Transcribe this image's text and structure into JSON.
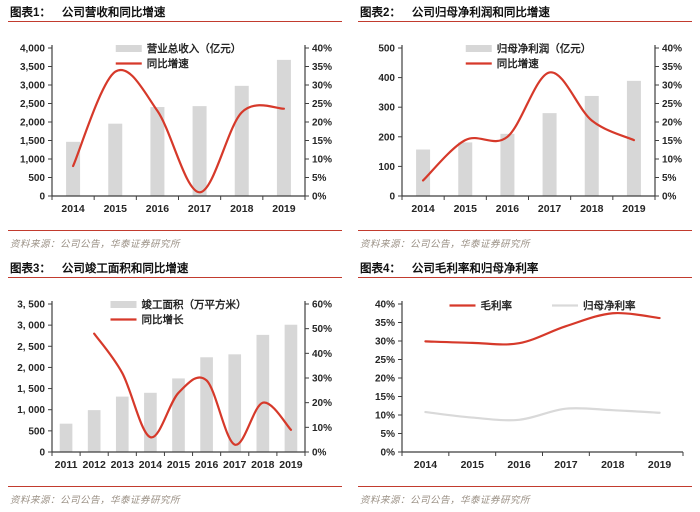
{
  "colors": {
    "accent_red": "#d6392a",
    "rule_red": "#c23b2e",
    "bar_gray": "#d7d7d7",
    "gray_line": "#d9d9d9",
    "axis_gray": "#3f3f3f",
    "tick_text": "#262626",
    "title_text": "#111111",
    "source_text": "#9b9186"
  },
  "chart_data": [
    {
      "id": "figure-1",
      "figure_label": "图表1：",
      "title": "公司营收和同比增速",
      "type": "bar+line",
      "categories": [
        "2014",
        "2015",
        "2016",
        "2017",
        "2018",
        "2019"
      ],
      "series": [
        {
          "name": "营业总收入（亿元）",
          "kind": "bar",
          "axis": "left",
          "color": "gray",
          "values": [
            1464,
            1955,
            2405,
            2429,
            2977,
            3679
          ]
        },
        {
          "name": "同比增速",
          "kind": "line",
          "axis": "right",
          "color": "red",
          "values": [
            8.1,
            33.6,
            23.0,
            1.0,
            22.6,
            23.6
          ]
        }
      ],
      "left_axis": {
        "min": 0,
        "max": 4000,
        "ticks": [
          "4,000",
          "3,500",
          "3,000",
          "2,500",
          "2,000",
          "1,500",
          "1,000",
          "500",
          "0"
        ]
      },
      "right_axis": {
        "min": 0,
        "max": 40,
        "ticks": [
          "40%",
          "35%",
          "30%",
          "25%",
          "20%",
          "15%",
          "10%",
          "5%",
          "0%"
        ]
      },
      "legend_position": "top-stacked",
      "source_label": "资料来源：",
      "source_text": "公司公告，华泰证券研究所"
    },
    {
      "id": "figure-2",
      "figure_label": "图表2：",
      "title": "公司归母净利润和同比增速",
      "type": "bar+line",
      "categories": [
        "2014",
        "2015",
        "2016",
        "2017",
        "2018",
        "2019"
      ],
      "series": [
        {
          "name": "归母净利润（亿元）",
          "kind": "bar",
          "axis": "left",
          "color": "gray",
          "values": [
            157,
            181,
            210,
            280,
            338,
            389
          ]
        },
        {
          "name": "同比增速",
          "kind": "line",
          "axis": "right",
          "color": "red",
          "values": [
            4.2,
            15.1,
            16.0,
            33.4,
            20.4,
            15.1
          ]
        }
      ],
      "left_axis": {
        "min": 0,
        "max": 500,
        "ticks": [
          "500",
          "400",
          "300",
          "200",
          "100",
          "0"
        ]
      },
      "right_axis": {
        "min": 0,
        "max": 40,
        "ticks": [
          "40%",
          "35%",
          "30%",
          "25%",
          "20%",
          "15%",
          "10%",
          "5%",
          "0%"
        ]
      },
      "legend_position": "top-stacked",
      "source_label": "资料来源：",
      "source_text": "公司公告，华泰证券研究所"
    },
    {
      "id": "figure-3",
      "figure_label": "图表3：",
      "title": "公司竣工面积和同比增速",
      "type": "bar+line",
      "categories": [
        "2011",
        "2012",
        "2013",
        "2014",
        "2015",
        "2016",
        "2017",
        "2018",
        "2019"
      ],
      "series": [
        {
          "name": "竣工面积（万平方米）",
          "kind": "bar",
          "axis": "left",
          "color": "gray",
          "values": [
            670,
            990,
            1310,
            1400,
            1740,
            2240,
            2310,
            2770,
            3010
          ]
        },
        {
          "name": "同比增长",
          "kind": "line",
          "axis": "right",
          "color": "red",
          "values": [
            null,
            48,
            32,
            6,
            24,
            29,
            3,
            20,
            9
          ]
        }
      ],
      "left_axis": {
        "min": 0,
        "max": 3500,
        "ticks": [
          "3, 500",
          "3, 000",
          "2, 500",
          "2, 000",
          "1, 500",
          "1, 000",
          "500",
          "0"
        ]
      },
      "right_axis": {
        "min": 0,
        "max": 60,
        "ticks": [
          "60%",
          "50%",
          "40%",
          "30%",
          "20%",
          "10%",
          "0%"
        ]
      },
      "legend_position": "top-stacked",
      "source_label": "资料来源：",
      "source_text": "公司公告，华泰证券研究所"
    },
    {
      "id": "figure-4",
      "figure_label": "图表4：",
      "title": "公司毛利率和归母净利率",
      "type": "line",
      "categories": [
        "2014",
        "2015",
        "2016",
        "2017",
        "2018",
        "2019"
      ],
      "series": [
        {
          "name": "毛利率",
          "kind": "line",
          "axis": "left",
          "color": "red",
          "values": [
            29.9,
            29.5,
            29.4,
            34.0,
            37.5,
            36.2
          ]
        },
        {
          "name": "归母净利率",
          "kind": "line",
          "axis": "left",
          "color": "gray",
          "values": [
            10.8,
            9.3,
            8.7,
            11.7,
            11.3,
            10.6
          ]
        }
      ],
      "left_axis": {
        "min": 0,
        "max": 40,
        "ticks": [
          "40%",
          "35%",
          "30%",
          "25%",
          "20%",
          "15%",
          "10%",
          "5%",
          "0%"
        ]
      },
      "legend_position": "top-row",
      "source_label": "资料来源：",
      "source_text": "公司公告，华泰证券研究所"
    }
  ]
}
